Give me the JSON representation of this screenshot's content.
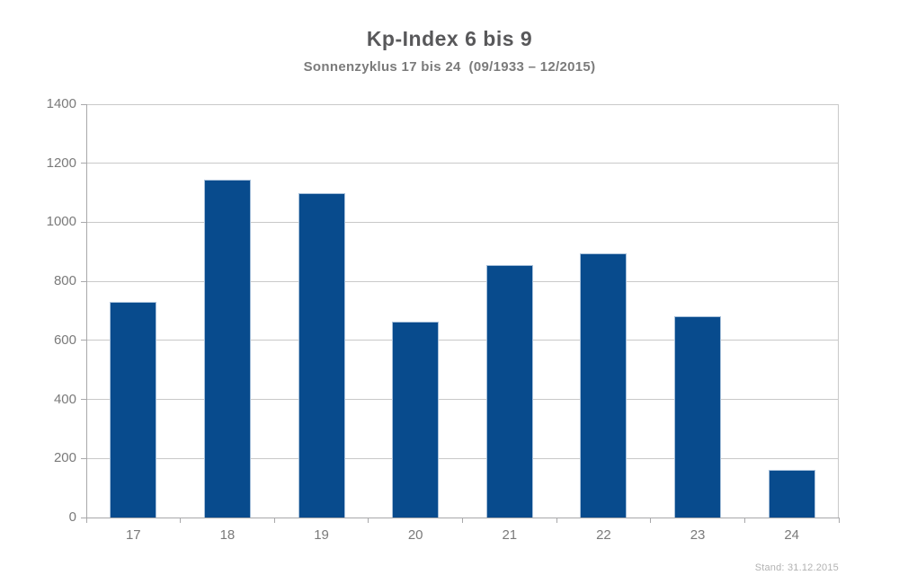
{
  "chart_data": {
    "type": "bar",
    "title": "Kp-Index 6 bis 9",
    "subtitle": "Sonnenzyklus 17 bis 24  (09/1933 – 12/2015)",
    "categories": [
      "17",
      "18",
      "19",
      "20",
      "21",
      "22",
      "23",
      "24"
    ],
    "values": [
      730,
      1145,
      1100,
      663,
      854,
      896,
      681,
      161
    ],
    "xlabel": "",
    "ylabel": "",
    "ylim": [
      0,
      1400
    ],
    "yticks": [
      0,
      200,
      400,
      600,
      800,
      1000,
      1200,
      1400
    ],
    "grid": true,
    "legend": false,
    "bar_color": "#084b8d",
    "bar_border_color": "#a7c0da",
    "annotation": "Stand: 31.12.2015"
  }
}
